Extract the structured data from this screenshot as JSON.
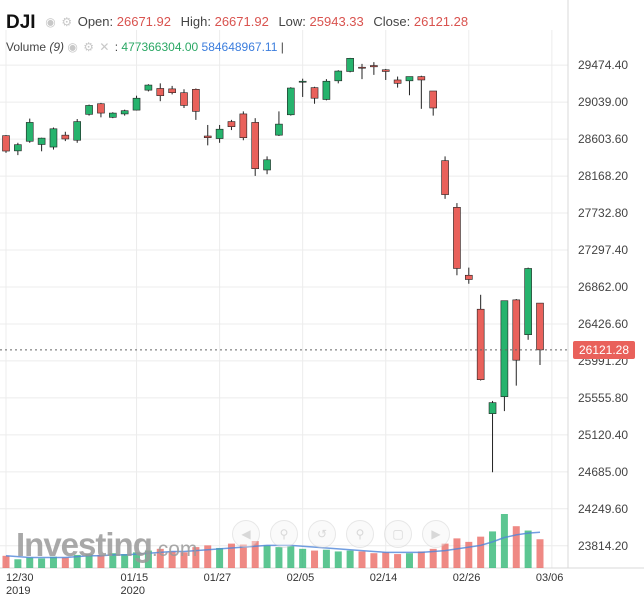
{
  "header": {
    "symbol": "DJI",
    "open_label": "Open:",
    "open": "26671.92",
    "high_label": "High:",
    "high": "26671.92",
    "low_label": "Low:",
    "low": "25943.33",
    "close_label": "Close:",
    "close": "26121.28",
    "volume_label": "Volume",
    "volume_period": "(9)",
    "volume_value_1": "477366304.00",
    "volume_value_2": "584648967.11"
  },
  "last_price_tag": "26121.28",
  "brand": {
    "name": "Investing",
    "suffix": ".com"
  },
  "nav_icons": [
    "arrow-left-icon",
    "zoom-in-icon",
    "reset-icon",
    "zoom-out-icon",
    "fullscreen-icon",
    "arrow-right-icon"
  ],
  "colors": {
    "up": "#26b36d",
    "down": "#e9615b",
    "grid": "#ececec",
    "volume_line": "#4f86d9"
  },
  "chart_data": {
    "type": "candlestick",
    "y_ticks": [
      "29474.40",
      "29039.00",
      "28603.60",
      "28168.20",
      "27732.80",
      "27297.40",
      "26862.00",
      "26426.60",
      "25991.20",
      "25555.80",
      "25120.40",
      "24685.00",
      "24249.60",
      "23814.20"
    ],
    "ylim": [
      23670,
      29700
    ],
    "x_ticks": [
      {
        "label": "12/30",
        "sub": "2019",
        "index": 0
      },
      {
        "label": "01/15",
        "sub": "2020",
        "index": 11
      },
      {
        "label": "01/27",
        "sub": "",
        "index": 18
      },
      {
        "label": "02/05",
        "sub": "",
        "index": 25
      },
      {
        "label": "02/14",
        "sub": "",
        "index": 32
      },
      {
        "label": "02/26",
        "sub": "",
        "index": 39
      },
      {
        "label": "03/06",
        "sub": "",
        "index": 46
      }
    ],
    "grid": true,
    "last_close": 26121.28,
    "candles": [
      {
        "o": 28644,
        "h": 28650,
        "l": 28441,
        "c": 28463
      },
      {
        "o": 28465,
        "h": 28560,
        "l": 28415,
        "c": 28538
      },
      {
        "o": 28578,
        "h": 28845,
        "l": 28560,
        "c": 28800
      },
      {
        "o": 28540,
        "h": 28620,
        "l": 28460,
        "c": 28615
      },
      {
        "o": 28510,
        "h": 28740,
        "l": 28480,
        "c": 28725
      },
      {
        "o": 28650,
        "h": 28690,
        "l": 28580,
        "c": 28605
      },
      {
        "o": 28590,
        "h": 28840,
        "l": 28560,
        "c": 28810
      },
      {
        "o": 28895,
        "h": 29010,
        "l": 28880,
        "c": 29000
      },
      {
        "o": 29020,
        "h": 29030,
        "l": 28860,
        "c": 28910
      },
      {
        "o": 28860,
        "h": 28920,
        "l": 28850,
        "c": 28910
      },
      {
        "o": 28900,
        "h": 28950,
        "l": 28880,
        "c": 28938
      },
      {
        "o": 28945,
        "h": 29115,
        "l": 28940,
        "c": 29085
      },
      {
        "o": 29180,
        "h": 29250,
        "l": 29165,
        "c": 29240
      },
      {
        "o": 29200,
        "h": 29260,
        "l": 29050,
        "c": 29115
      },
      {
        "o": 29195,
        "h": 29230,
        "l": 29130,
        "c": 29150
      },
      {
        "o": 29150,
        "h": 29190,
        "l": 28970,
        "c": 29000
      },
      {
        "o": 29190,
        "h": 29200,
        "l": 28830,
        "c": 28930
      },
      {
        "o": 28640,
        "h": 28770,
        "l": 28530,
        "c": 28620
      },
      {
        "o": 28610,
        "h": 28770,
        "l": 28560,
        "c": 28720
      },
      {
        "o": 28810,
        "h": 28830,
        "l": 28710,
        "c": 28750
      },
      {
        "o": 28900,
        "h": 28930,
        "l": 28590,
        "c": 28620
      },
      {
        "o": 28800,
        "h": 28850,
        "l": 28170,
        "c": 28255
      },
      {
        "o": 28240,
        "h": 28400,
        "l": 28190,
        "c": 28360
      },
      {
        "o": 28650,
        "h": 28930,
        "l": 28640,
        "c": 28780
      },
      {
        "o": 28890,
        "h": 29215,
        "l": 28880,
        "c": 29205
      },
      {
        "o": 29285,
        "h": 29315,
        "l": 29100,
        "c": 29285
      },
      {
        "o": 29210,
        "h": 29220,
        "l": 29020,
        "c": 29085
      },
      {
        "o": 29070,
        "h": 29310,
        "l": 29060,
        "c": 29285
      },
      {
        "o": 29290,
        "h": 29415,
        "l": 29260,
        "c": 29405
      },
      {
        "o": 29400,
        "h": 29560,
        "l": 29390,
        "c": 29555
      },
      {
        "o": 29450,
        "h": 29490,
        "l": 29310,
        "c": 29445
      },
      {
        "o": 29470,
        "h": 29510,
        "l": 29360,
        "c": 29455
      },
      {
        "o": 29420,
        "h": 29430,
        "l": 29300,
        "c": 29400
      },
      {
        "o": 29300,
        "h": 29340,
        "l": 29210,
        "c": 29260
      },
      {
        "o": 29290,
        "h": 29340,
        "l": 29120,
        "c": 29340
      },
      {
        "o": 29340,
        "h": 29350,
        "l": 28960,
        "c": 29300
      },
      {
        "o": 29170,
        "h": 29170,
        "l": 28880,
        "c": 28970
      },
      {
        "o": 28350,
        "h": 28400,
        "l": 27900,
        "c": 27950
      },
      {
        "o": 27800,
        "h": 27850,
        "l": 27000,
        "c": 27080
      },
      {
        "o": 27000,
        "h": 27090,
        "l": 26900,
        "c": 26950
      },
      {
        "o": 26600,
        "h": 26770,
        "l": 25760,
        "c": 25770
      },
      {
        "o": 25370,
        "h": 25520,
        "l": 24680,
        "c": 25500
      },
      {
        "o": 25570,
        "h": 26700,
        "l": 25400,
        "c": 26700
      },
      {
        "o": 26710,
        "h": 26720,
        "l": 25700,
        "c": 26000
      },
      {
        "o": 26300,
        "h": 27090,
        "l": 26240,
        "c": 27080
      },
      {
        "o": 26671.92,
        "h": 26671.92,
        "l": 25943.33,
        "c": 26121.28
      }
    ],
    "volumes": [
      14,
      10,
      12,
      11,
      13,
      12,
      15,
      16,
      15,
      17,
      16,
      18,
      20,
      22,
      19,
      18,
      24,
      26,
      23,
      28,
      27,
      31,
      26,
      24,
      25,
      22,
      20,
      21,
      19,
      20,
      19,
      17,
      18,
      16,
      17,
      19,
      22,
      28,
      34,
      30,
      36,
      42,
      62,
      48,
      43,
      33
    ],
    "volume_avg": [
      14,
      13,
      12,
      12,
      12,
      12,
      13,
      14,
      14,
      15,
      15,
      16,
      17,
      18,
      19,
      19,
      20,
      21,
      22,
      23,
      24,
      25,
      26,
      26,
      26,
      25,
      24,
      23,
      22,
      21,
      20,
      19,
      18,
      18,
      18,
      18,
      19,
      20,
      22,
      24,
      26,
      30,
      35,
      38,
      40,
      41
    ]
  }
}
